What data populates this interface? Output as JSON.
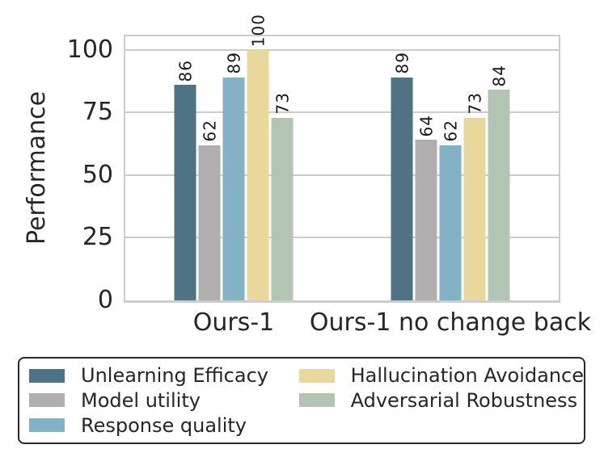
{
  "figure": {
    "background": "#ffffff",
    "text_color": "#262626",
    "grid_color": "#cccccc",
    "spine_color": "#cccccc",
    "legend_border_color": "#2a2a2a"
  },
  "chart_data": {
    "type": "bar",
    "title": "",
    "xlabel": "",
    "ylabel": "Performance",
    "categories": [
      "Ours-1",
      "Ours-1 no change back"
    ],
    "series": [
      {
        "name": "Unlearning Efficacy",
        "color": "#4d7385",
        "values": [
          86,
          89
        ]
      },
      {
        "name": "Model utility",
        "color": "#b0aeaf",
        "values": [
          62,
          64
        ]
      },
      {
        "name": "Response quality",
        "color": "#82b2c4",
        "values": [
          89,
          62
        ]
      },
      {
        "name": "Hallucination Avoidance",
        "color": "#e8d89c",
        "values": [
          100,
          73
        ]
      },
      {
        "name": "Adversarial Robustness",
        "color": "#b2c4b4",
        "values": [
          73,
          84
        ]
      }
    ],
    "yticks": [
      0,
      25,
      50,
      75,
      100
    ],
    "ylim": [
      0,
      105.4
    ],
    "grid": "horizontal",
    "legend_position": "bottom",
    "legend_columns": 2,
    "bar_value_labels": true,
    "bar_label_rotation_deg": 90
  }
}
